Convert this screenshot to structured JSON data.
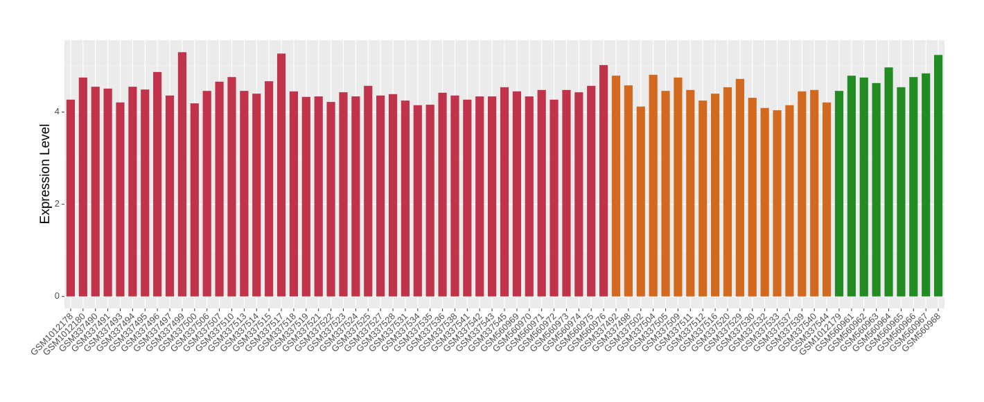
{
  "chart_data": {
    "type": "bar",
    "y_label": "Expression Level",
    "ylim": [
      -0.26,
      5.56
    ],
    "yticks": [
      0,
      2,
      4
    ],
    "grid": true,
    "groups": [
      {
        "color": "#c0334a",
        "categories": [
          "GSM1012178",
          "GSM1012180",
          "GSM337490",
          "GSM337491",
          "GSM337493",
          "GSM337494",
          "GSM337495",
          "GSM337496",
          "GSM337497",
          "GSM337499",
          "GSM337500",
          "GSM337506",
          "GSM337507",
          "GSM337510",
          "GSM337513",
          "GSM337514",
          "GSM337515",
          "GSM337517",
          "GSM337518",
          "GSM337519",
          "GSM337521",
          "GSM337522",
          "GSM337523",
          "GSM337524",
          "GSM337525",
          "GSM337527",
          "GSM337528",
          "GSM337531",
          "GSM337534",
          "GSM337535",
          "GSM337536",
          "GSM337538",
          "GSM337541",
          "GSM337542",
          "GSM337543",
          "GSM337545",
          "GSM560969",
          "GSM560970",
          "GSM560971",
          "GSM560972",
          "GSM560973",
          "GSM560974",
          "GSM560975",
          "GSM560976"
        ],
        "values": [
          4.27,
          4.75,
          4.55,
          4.51,
          4.21,
          4.55,
          4.49,
          4.87,
          4.36,
          5.3,
          4.19,
          4.46,
          4.66,
          4.76,
          4.46,
          4.4,
          4.67,
          5.27,
          4.45,
          4.33,
          4.34,
          4.22,
          4.43,
          4.34,
          4.57,
          4.36,
          4.39,
          4.25,
          4.15,
          4.16,
          4.42,
          4.36,
          4.27,
          4.34,
          4.34,
          4.54,
          4.45,
          4.34,
          4.48,
          4.27,
          4.48,
          4.43,
          4.57,
          5.02
        ]
      },
      {
        "color": "#d2691e",
        "categories": [
          "GSM337492",
          "GSM337498",
          "GSM337502",
          "GSM337504",
          "GSM337505",
          "GSM337509",
          "GSM337511",
          "GSM337512",
          "GSM337516",
          "GSM337520",
          "GSM337529",
          "GSM337530",
          "GSM337532",
          "GSM337533",
          "GSM337537",
          "GSM337539",
          "GSM337540",
          "GSM337544"
        ],
        "values": [
          4.79,
          4.58,
          4.12,
          4.81,
          4.46,
          4.75,
          4.48,
          4.25,
          4.4,
          4.54,
          4.72,
          4.31,
          4.09,
          4.04,
          4.15,
          4.45,
          4.48,
          4.21
        ]
      },
      {
        "color": "#228b22",
        "categories": [
          "GSM1012179",
          "GSM560961",
          "GSM560962",
          "GSM560963",
          "GSM560964",
          "GSM560965",
          "GSM560966",
          "GSM560967",
          "GSM560968"
        ],
        "values": [
          4.46,
          4.79,
          4.75,
          4.63,
          4.97,
          4.54,
          4.76,
          4.84,
          5.24
        ]
      }
    ]
  }
}
